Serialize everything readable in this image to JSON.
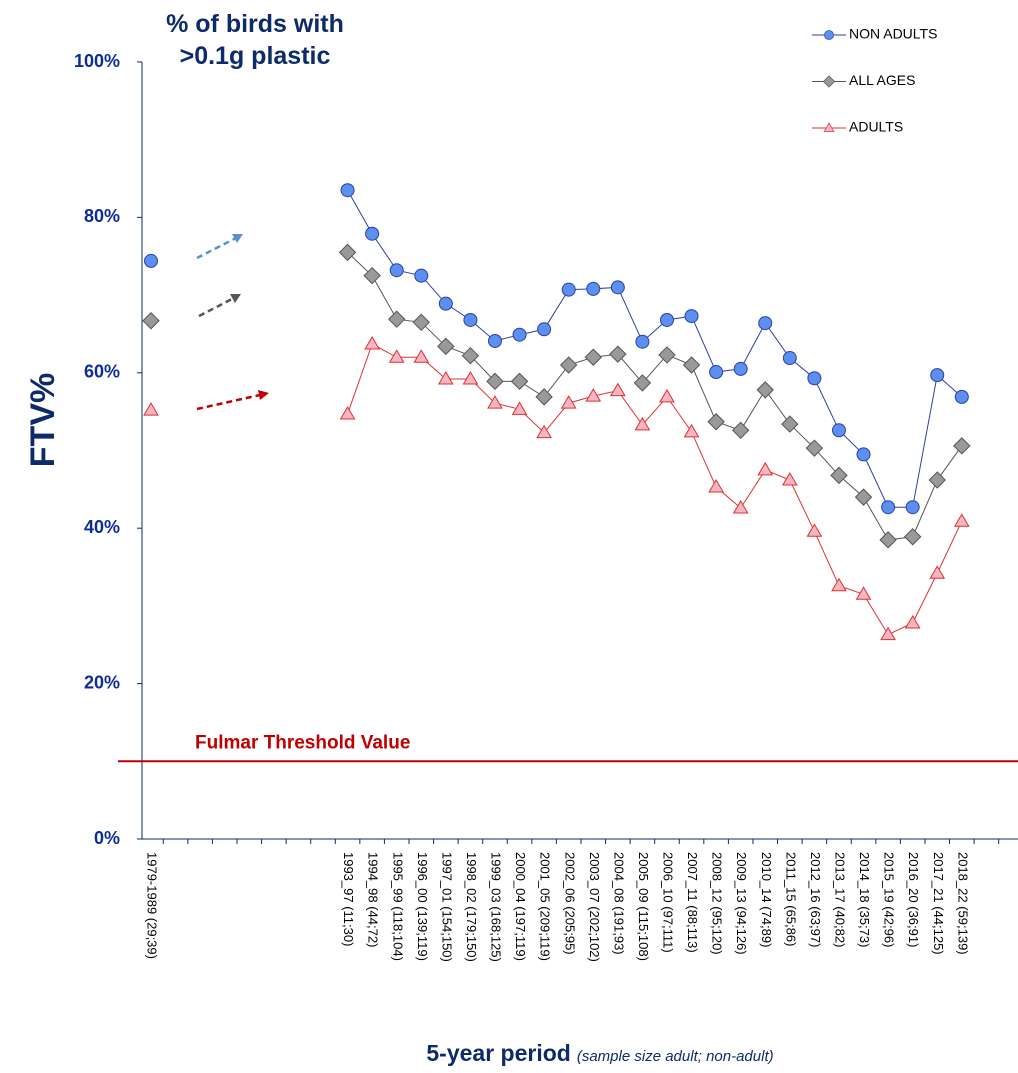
{
  "chart_data": {
    "type": "line",
    "title": "% of birds with\n>0.1g plastic",
    "ylabel": "FTV%",
    "xlabel": "5-year period",
    "xlabel_note": "(sample size adult; non-adult)",
    "categories": [
      "1979-1989 (29;39)",
      null,
      null,
      null,
      null,
      null,
      null,
      null,
      "1993_97 (11;30)",
      "1994_98 (44;72)",
      "1995_99 (118;104)",
      "1996_00 (139;119)",
      "1997_01 (154;150)",
      "1998_02 (179;150)",
      "1999_03 (168;125)",
      "2000_04 (197;119)",
      "2001_05 (209;119)",
      "2002_06 (205;95)",
      "2003_07 (202;102)",
      "2004_08 (191;93)",
      "2005_09 (115;108)",
      "2006_10 (97;111)",
      "2007_11 (88;113)",
      "2008_12 (95;120)",
      "2009_13 (94;126)",
      "2010_14 (74;89)",
      "2011_15 (65;86)",
      "2012_16 (63;97)",
      "2013_17 (40;82)",
      "2014_18 (35;73)",
      "2015_19 (42;96)",
      "2016_20 (36;91)",
      "2017_21 (44;125)",
      "2018_22 (59;139)"
    ],
    "series": [
      {
        "name": "NON ADULTS",
        "color": "#2b3fa8",
        "marker_fill": "#5b8ff0",
        "marker": "circle",
        "values": [
          74.4,
          null,
          null,
          null,
          null,
          null,
          null,
          null,
          83.5,
          77.9,
          73.2,
          72.5,
          68.9,
          66.8,
          64.1,
          64.9,
          65.6,
          70.7,
          70.8,
          71.0,
          64.0,
          66.8,
          67.3,
          60.1,
          60.5,
          66.4,
          61.9,
          59.3,
          52.6,
          49.5,
          42.7,
          42.7,
          59.7,
          56.9
        ]
      },
      {
        "name": "ALL AGES",
        "color": "#555555",
        "marker_fill": "#999999",
        "marker": "diamond",
        "values": [
          66.7,
          null,
          null,
          null,
          null,
          null,
          null,
          null,
          75.5,
          72.5,
          66.9,
          66.5,
          63.4,
          62.2,
          58.9,
          58.9,
          56.9,
          61.0,
          62.0,
          62.4,
          58.7,
          62.3,
          61.0,
          53.7,
          52.6,
          57.8,
          53.4,
          50.3,
          46.8,
          44.0,
          38.5,
          38.9,
          46.2,
          50.6
        ]
      },
      {
        "name": "ADULTS",
        "color": "#e03030",
        "marker_fill": "#f4b6c2",
        "marker": "triangle",
        "values": [
          55.2,
          null,
          null,
          null,
          null,
          null,
          null,
          null,
          54.7,
          63.7,
          62.0,
          62.0,
          59.2,
          59.2,
          56.1,
          55.3,
          52.3,
          56.1,
          57.0,
          57.7,
          53.3,
          56.9,
          52.4,
          45.3,
          42.6,
          47.5,
          46.2,
          39.6,
          32.6,
          31.5,
          26.3,
          27.8,
          34.2,
          40.9
        ]
      }
    ],
    "threshold": {
      "value": 10,
      "label": "Fulmar Threshold Value",
      "color": "#c00000"
    },
    "ylim": [
      0,
      100
    ],
    "yticks": [
      {
        "value": 0,
        "label": "0%"
      },
      {
        "value": 20,
        "label": "20%"
      },
      {
        "value": 40,
        "label": "40%"
      },
      {
        "value": 60,
        "label": "60%"
      },
      {
        "value": 80,
        "label": "80%"
      },
      {
        "value": 100,
        "label": "100%"
      }
    ],
    "grid": false,
    "legend": "upper right"
  }
}
